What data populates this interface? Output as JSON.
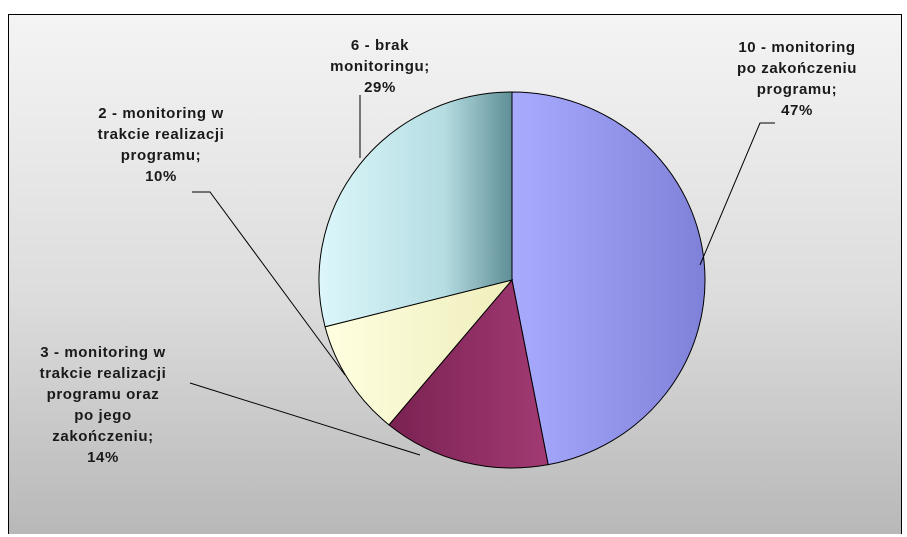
{
  "chart_data": {
    "type": "pie",
    "slices": [
      {
        "label": "10 - monitoring po zakończeniu programu",
        "value": 10,
        "percent": 47,
        "color": "#9a9cf4",
        "label_lines": [
          "10 - monitoring",
          "po zakończeniu",
          "programu;",
          "47%"
        ]
      },
      {
        "label": "3 - monitoring w trakcie realizacji programu oraz po jego zakończeniu",
        "value": 3,
        "percent": 14,
        "color": "#8e2c62",
        "label_lines": [
          "3 - monitoring w",
          "trakcie realizacji",
          "programu oraz",
          "po jego",
          "zakończeniu;",
          "14%"
        ]
      },
      {
        "label": "2 - monitoring w trakcie realizacji programu",
        "value": 2,
        "percent": 10,
        "color": "#fdfcd2",
        "label_lines": [
          "2 - monitoring w",
          "trakcie realizacji",
          "programu;",
          "10%"
        ]
      },
      {
        "label": "6 - brak monitoringu",
        "value": 6,
        "percent": 29,
        "color": "#cfeff3",
        "label_lines": [
          "6 - brak",
          "monitoringu;",
          "29%"
        ]
      }
    ]
  }
}
